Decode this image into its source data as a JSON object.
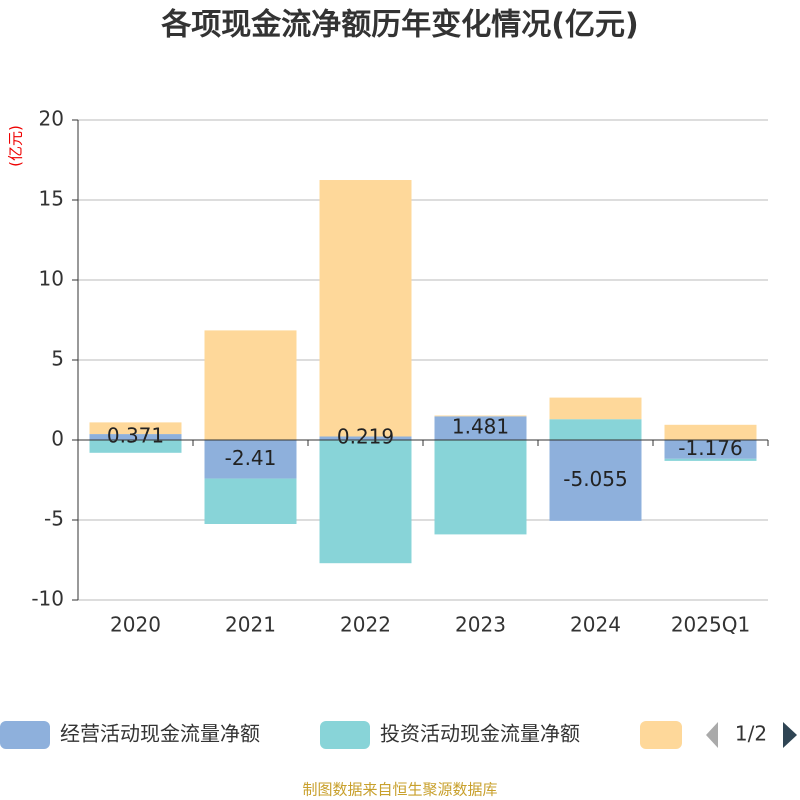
{
  "chart_data": {
    "type": "bar",
    "stacked": true,
    "title": "各项现金流净额历年变化情况(亿元)",
    "y_unit": "(亿元)",
    "categories": [
      "2020",
      "2021",
      "2022",
      "2023",
      "2024",
      "2025Q1"
    ],
    "series": [
      {
        "name": "经营活动现金流量净额",
        "color": "#8eb0dc",
        "values": [
          0.371,
          -2.41,
          0.219,
          1.481,
          -5.055,
          -1.176
        ]
      },
      {
        "name": "投资活动现金流量净额",
        "color": "#88d4d8",
        "values": [
          -0.8,
          -2.84,
          -7.7,
          -5.9,
          1.3,
          -0.13
        ]
      },
      {
        "color": "#fed89a",
        "values": [
          0.73,
          6.85,
          16.03,
          0.05,
          1.35,
          0.95
        ]
      }
    ],
    "ylim": [
      -10,
      20
    ],
    "yticks": [
      -10,
      -5,
      0,
      5,
      10,
      15,
      20
    ],
    "grid": true,
    "legend_page": "1/2",
    "source": "制图数据来自恒生聚源数据库"
  }
}
